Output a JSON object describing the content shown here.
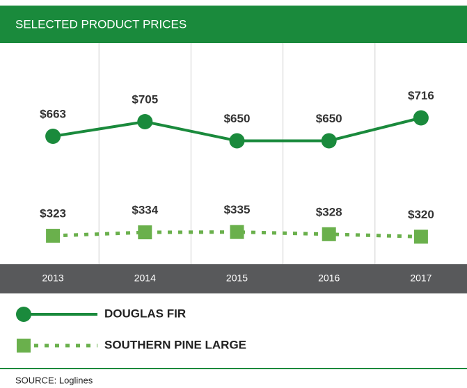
{
  "chart_data": {
    "type": "line",
    "title": "SELECTED PRODUCT PRICES",
    "categories": [
      "2013",
      "2014",
      "2015",
      "2016",
      "2017"
    ],
    "ylim": [
      295,
      931
    ],
    "y2lim": [
      232,
      939
    ],
    "series": [
      {
        "name": "DOUGLAS FIR",
        "color": "#1a8a3c",
        "values": [
          663,
          705,
          650,
          650,
          716
        ],
        "value_labels": [
          "$663",
          "$705",
          "$650",
          "$650",
          "$716"
        ]
      },
      {
        "name": "SOUTHERN PINE LARGE",
        "color": "#6ab04c",
        "axis": "y2",
        "values": [
          323,
          334,
          335,
          328,
          320
        ],
        "value_labels": [
          "$323",
          "$334",
          "$335",
          "$328",
          "$320"
        ]
      }
    ],
    "grid": true,
    "source": "SOURCE: Loglines"
  }
}
